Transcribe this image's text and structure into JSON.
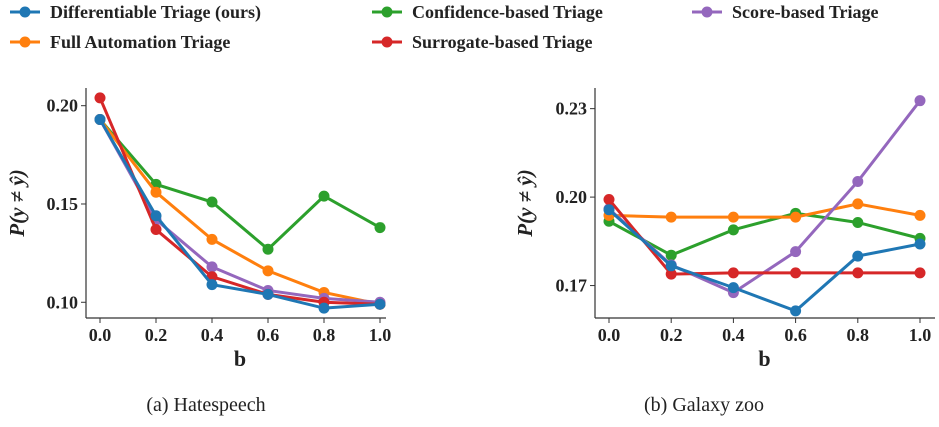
{
  "legend": [
    {
      "name": "Differentiable Triage (ours)",
      "color": "#1f77b4"
    },
    {
      "name": "Confidence-based Triage",
      "color": "#2ca02c"
    },
    {
      "name": "Score-based Triage",
      "color": "#9467bd"
    },
    {
      "name": "Full Automation Triage",
      "color": "#ff7f0e"
    },
    {
      "name": "Surrogate-based Triage",
      "color": "#d62728"
    }
  ],
  "chart_data": [
    {
      "type": "line",
      "title": "(a) Hatespeech",
      "xlabel": "b",
      "ylabel": "P(y ≠ ŷ)",
      "x": [
        0.0,
        0.2,
        0.4,
        0.6,
        0.8,
        1.0
      ],
      "xticks": [
        "0.0",
        "0.2",
        "0.4",
        "0.6",
        "0.8",
        "1.0"
      ],
      "yticks": [
        {
          "v": 0.1,
          "label": "0.10"
        },
        {
          "v": 0.15,
          "label": "0.15"
        },
        {
          "v": 0.2,
          "label": "0.20"
        }
      ],
      "ylim": [
        0.092,
        0.209
      ],
      "series": [
        {
          "name": "Confidence-based Triage",
          "color": "#2ca02c",
          "values": [
            0.193,
            0.16,
            0.151,
            0.127,
            0.154,
            0.138
          ]
        },
        {
          "name": "Full Automation Triage",
          "color": "#ff7f0e",
          "values": [
            0.193,
            0.156,
            0.132,
            0.116,
            0.105,
            0.099
          ]
        },
        {
          "name": "Score-based Triage",
          "color": "#9467bd",
          "values": [
            0.193,
            0.142,
            0.118,
            0.106,
            0.102,
            0.1
          ]
        },
        {
          "name": "Surrogate-based Triage",
          "color": "#d62728",
          "values": [
            0.204,
            0.137,
            0.113,
            0.104,
            0.1,
            0.099
          ]
        },
        {
          "name": "Differentiable Triage (ours)",
          "color": "#1f77b4",
          "values": [
            0.193,
            0.144,
            0.109,
            0.104,
            0.097,
            0.099
          ]
        }
      ]
    },
    {
      "type": "line",
      "title": "(b) Galaxy zoo",
      "xlabel": "b",
      "ylabel": "P(y ≠ ŷ)",
      "x": [
        0.0,
        0.2,
        0.4,
        0.6,
        0.8,
        1.0
      ],
      "xticks": [
        "0.0",
        "0.2",
        "0.4",
        "0.6",
        "0.8",
        "1.0"
      ],
      "yticks": [
        {
          "v": 0.17,
          "label": "0.17"
        },
        {
          "v": 0.2,
          "label": "0.20"
        },
        {
          "v": 0.23,
          "label": "0.23"
        }
      ],
      "ylim": [
        0.159,
        0.237
      ],
      "series": [
        {
          "name": "Confidence-based Triage",
          "color": "#2ca02c",
          "values": [
            0.1918,
            0.1803,
            0.1889,
            0.1945,
            0.1914,
            0.186
          ]
        },
        {
          "name": "Full Automation Triage",
          "color": "#ff7f0e",
          "values": [
            0.1938,
            0.1932,
            0.1932,
            0.1932,
            0.1977,
            0.1938
          ]
        },
        {
          "name": "Score-based Triage",
          "color": "#9467bd",
          "values": [
            0.196,
            0.177,
            0.1676,
            0.1815,
            0.2053,
            0.2327
          ]
        },
        {
          "name": "Surrogate-based Triage",
          "color": "#d62728",
          "values": [
            0.1992,
            0.1739,
            0.1743,
            0.1743,
            0.1743,
            0.1743
          ]
        },
        {
          "name": "Differentiable Triage (ours)",
          "color": "#1f77b4",
          "values": [
            0.1957,
            0.1767,
            0.1693,
            0.1614,
            0.18,
            0.1841
          ]
        }
      ]
    }
  ]
}
